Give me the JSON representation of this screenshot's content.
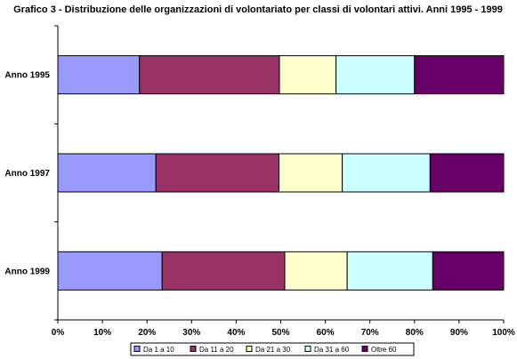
{
  "chart_data": {
    "type": "bar",
    "orientation": "horizontal",
    "stacked": "percent",
    "title": "Grafico 3 - Distribuzione delle organizzazioni di volontariato per classi di volontari attivi. Anni 1995 - 1999",
    "categories": [
      "Anno 1995",
      "Anno 1997",
      "Anno 1999"
    ],
    "series": [
      {
        "name": "Da 1 a 10",
        "color": "#9999ff",
        "values": [
          18.3,
          22.0,
          23.4
        ]
      },
      {
        "name": "Da 11 a 20",
        "color": "#993366",
        "values": [
          31.4,
          27.6,
          27.5
        ]
      },
      {
        "name": "Da 21 a 30",
        "color": "#ffffcc",
        "values": [
          12.7,
          14.2,
          14.0
        ]
      },
      {
        "name": "Da 31 a 60",
        "color": "#ccffff",
        "values": [
          17.6,
          19.7,
          19.2
        ]
      },
      {
        "name": "Oltre 60",
        "color": "#660066",
        "values": [
          20.0,
          16.5,
          15.9
        ]
      }
    ],
    "xlim": [
      0,
      100
    ],
    "xticks": [
      "0%",
      "10%",
      "20%",
      "30%",
      "40%",
      "50%",
      "60%",
      "70%",
      "80%",
      "90%",
      "100%"
    ],
    "grid": false,
    "legend_position": "bottom"
  }
}
